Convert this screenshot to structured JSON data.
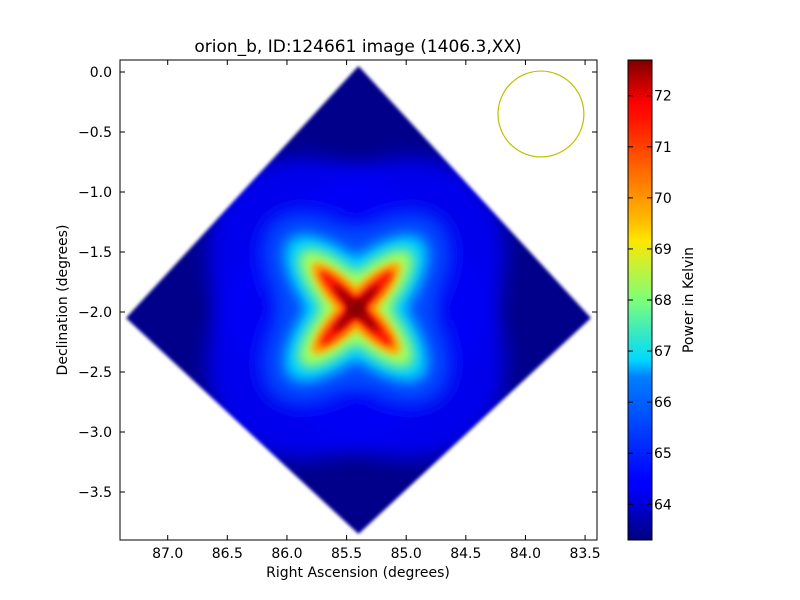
{
  "chart_data": {
    "type": "heatmap",
    "title": "orion_b, ID:124661 image (1406.3,XX)",
    "xlabel": "Right Ascension (degrees)",
    "ylabel": "Declination (degrees)",
    "xlim": [
      87.4,
      83.4
    ],
    "ylim": [
      -3.9,
      0.1
    ],
    "x_ticks": [
      87.0,
      86.5,
      86.0,
      85.5,
      85.0,
      84.5,
      84.0,
      83.5
    ],
    "x_tick_labels": [
      "87.0",
      "86.5",
      "86.0",
      "85.5",
      "85.0",
      "84.5",
      "84.0",
      "83.5"
    ],
    "y_ticks": [
      0.0,
      -0.5,
      -1.0,
      -1.5,
      -2.0,
      -2.5,
      -3.0,
      -3.5
    ],
    "y_tick_labels": [
      "0.0",
      "−0.5",
      "−1.0",
      "−1.5",
      "−2.0",
      "−2.5",
      "−3.0",
      "−3.5"
    ],
    "colorbar": {
      "label": "Power in Kelvin",
      "colormap": "jet",
      "min": 63.3,
      "max": 72.7,
      "ticks": [
        64,
        65,
        66,
        67,
        68,
        69,
        70,
        71,
        72
      ],
      "tick_labels": [
        "64",
        "65",
        "66",
        "67",
        "68",
        "69",
        "70",
        "71",
        "72"
      ]
    },
    "map_region": {
      "shape": "diamond",
      "center": [
        85.4,
        -1.97
      ],
      "corners": [
        [
          85.4,
          0.05
        ],
        [
          83.45,
          -2.05
        ],
        [
          85.4,
          -3.85
        ],
        [
          87.35,
          -2.05
        ]
      ],
      "background_value": 63.4
    },
    "features": [
      {
        "type": "cross-shaped peak",
        "center": [
          85.42,
          -1.97
        ],
        "peak_value": 72.6,
        "arms": [
          [
            85.72,
            -1.66
          ],
          [
            85.08,
            -2.28
          ],
          [
            85.08,
            -1.62
          ],
          [
            85.75,
            -2.32
          ]
        ]
      }
    ],
    "beam": {
      "shape": "circle",
      "center_ra": 83.87,
      "center_dec": -0.35,
      "radius_deg": 0.36,
      "color": "#bfbf00"
    }
  }
}
